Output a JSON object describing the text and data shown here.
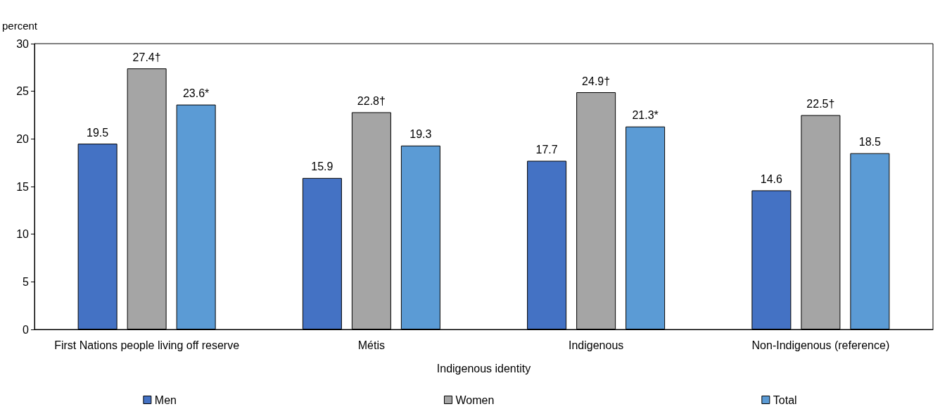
{
  "chart_data": {
    "type": "bar",
    "ylabel": "percent",
    "xlabel": "Indigenous identity",
    "categories": [
      "First Nations people living off reserve",
      "Métis",
      "Indigenous",
      "Non-Indigenous (reference)"
    ],
    "series": [
      {
        "name": "Men",
        "color": "#4472c4",
        "values": [
          19.5,
          15.9,
          17.7,
          14.6
        ],
        "value_labels": [
          "19.5",
          "15.9",
          "17.7",
          "14.6"
        ]
      },
      {
        "name": "Women",
        "color": "#a5a5a5",
        "values": [
          27.4,
          22.8,
          24.9,
          22.5
        ],
        "value_labels": [
          "27.4†",
          "22.8†",
          "24.9†",
          "22.5†"
        ]
      },
      {
        "name": "Total",
        "color": "#5b9bd5",
        "values": [
          23.6,
          19.3,
          21.3,
          18.5
        ],
        "value_labels": [
          "23.6*",
          "19.3",
          "21.3*",
          "18.5"
        ]
      }
    ],
    "ylim": [
      0,
      30
    ],
    "yticks": [
      0,
      5,
      10,
      15,
      20,
      25,
      30
    ],
    "grid": false,
    "legend": "bottom"
  }
}
